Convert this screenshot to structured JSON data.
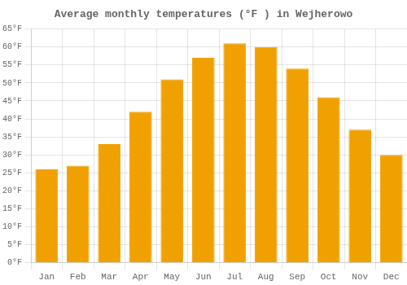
{
  "chart_data": {
    "type": "bar",
    "title": "Average monthly temperatures (°F ) in Wejherowo",
    "categories": [
      "Jan",
      "Feb",
      "Mar",
      "Apr",
      "May",
      "Jun",
      "Jul",
      "Aug",
      "Sep",
      "Oct",
      "Nov",
      "Dec"
    ],
    "values": [
      26,
      27,
      33,
      42,
      51,
      57,
      61,
      60,
      54,
      46,
      37,
      30
    ],
    "color": "#F0A000",
    "ylim": [
      0,
      65
    ],
    "yticks": [
      {
        "value": 0,
        "label": "0°F"
      },
      {
        "value": 5,
        "label": "5°F"
      },
      {
        "value": 10,
        "label": "10°F"
      },
      {
        "value": 15,
        "label": "15°F"
      },
      {
        "value": 20,
        "label": "20°F"
      },
      {
        "value": 25,
        "label": "25°F"
      },
      {
        "value": 30,
        "label": "30°F"
      },
      {
        "value": 35,
        "label": "35°F"
      },
      {
        "value": 40,
        "label": "40°F"
      },
      {
        "value": 45,
        "label": "45°F"
      },
      {
        "value": 50,
        "label": "50°F"
      },
      {
        "value": 55,
        "label": "55°F"
      },
      {
        "value": 60,
        "label": "60°F"
      },
      {
        "value": 65,
        "label": "65°F"
      }
    ],
    "grid": true
  }
}
